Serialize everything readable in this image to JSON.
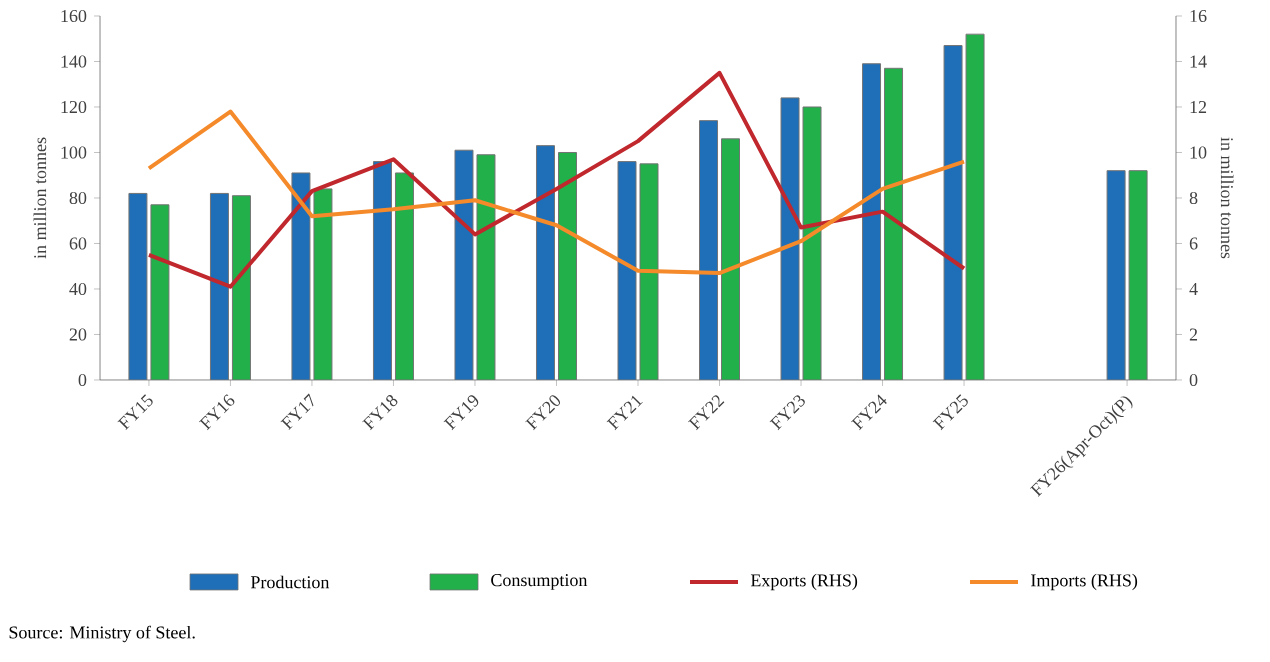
{
  "chart_data": {
    "type": "bar",
    "categories": [
      "FY15",
      "FY16",
      "FY17",
      "FY18",
      "FY19",
      "FY20",
      "FY21",
      "FY22",
      "FY23",
      "FY24",
      "FY25",
      null,
      "FY26(Apr-Oct)(P)"
    ],
    "series": [
      {
        "name": "Production",
        "color": "#1f6fb8",
        "values": [
          82,
          82,
          91,
          96,
          101,
          103,
          96,
          114,
          124,
          139,
          147,
          null,
          92
        ]
      },
      {
        "name": "Consumption",
        "color": "#22b04b",
        "values": [
          77,
          81,
          84,
          91,
          99,
          100,
          95,
          106,
          120,
          137,
          152,
          null,
          92
        ]
      },
      {
        "name": "Exports (RHS)",
        "type": "line",
        "axis": "y2",
        "color": "#c0282d",
        "values": [
          5.5,
          4.1,
          8.3,
          9.7,
          6.4,
          8.4,
          10.5,
          13.5,
          6.7,
          7.4,
          4.9,
          null,
          null
        ]
      },
      {
        "name": "Imports (RHS)",
        "type": "line",
        "axis": "y2",
        "color": "#f58a2b",
        "values": [
          9.3,
          11.8,
          7.2,
          7.5,
          7.9,
          6.8,
          4.8,
          4.7,
          6.1,
          8.4,
          9.6,
          null,
          null
        ]
      }
    ],
    "ylabel": "in million tonnes",
    "y2label": "in million tonnes",
    "ylim": [
      0,
      160
    ],
    "yticks": [
      0,
      20,
      40,
      60,
      80,
      100,
      120,
      140,
      160
    ],
    "y2lim": [
      0,
      16
    ],
    "y2ticks": [
      0,
      2,
      4,
      6,
      8,
      10,
      12,
      14,
      16
    ],
    "legend": "bottom",
    "grid": false,
    "annotations": [
      "Source: Ministry of Steel."
    ]
  }
}
